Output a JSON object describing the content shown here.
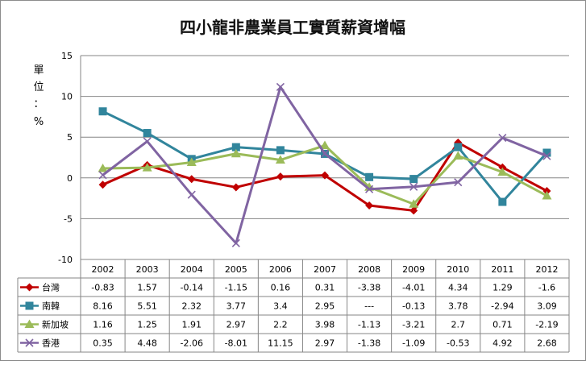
{
  "chart_data": {
    "type": "line",
    "title": "四小龍非農業員工實質薪資增幅",
    "ylabel": [
      "單",
      "位",
      "：",
      "%"
    ],
    "ylim": [
      -10,
      15
    ],
    "yticks": [
      -10,
      -5,
      0,
      5,
      10,
      15
    ],
    "grid": true,
    "legend": "data-table-left",
    "categories": [
      "2002",
      "2003",
      "2004",
      "2005",
      "2006",
      "2007",
      "2008",
      "2009",
      "2010",
      "2011",
      "2012"
    ],
    "series": [
      {
        "name": "台灣",
        "color": "#c00000",
        "marker": "diamond",
        "values": [
          -0.83,
          1.57,
          -0.14,
          -1.15,
          0.16,
          0.31,
          -3.38,
          -4.01,
          4.34,
          1.29,
          -1.6
        ],
        "labels": [
          "-0.83",
          "1.57",
          "-0.14",
          "-1.15",
          "0.16",
          "0.31",
          "-3.38",
          "-4.01",
          "4.34",
          "1.29",
          "-1.6"
        ]
      },
      {
        "name": "南韓",
        "color": "#31859c",
        "marker": "square",
        "values": [
          8.16,
          5.51,
          2.32,
          3.77,
          3.4,
          2.95,
          0.1,
          -0.13,
          3.78,
          -2.94,
          3.09
        ],
        "labels": [
          "8.16",
          "5.51",
          "2.32",
          "3.77",
          "3.4",
          "2.95",
          "---",
          "-0.13",
          "3.78",
          "-2.94",
          "3.09"
        ]
      },
      {
        "name": "新加坡",
        "color": "#9bbb59",
        "marker": "triangle",
        "values": [
          1.16,
          1.25,
          1.91,
          2.97,
          2.2,
          3.98,
          -1.13,
          -3.21,
          2.7,
          0.71,
          -2.19
        ],
        "labels": [
          "1.16",
          "1.25",
          "1.91",
          "2.97",
          "2.2",
          "3.98",
          "-1.13",
          "-3.21",
          "2.7",
          "0.71",
          "-2.19"
        ]
      },
      {
        "name": "香港",
        "color": "#8064a2",
        "marker": "x",
        "values": [
          0.35,
          4.48,
          -2.06,
          -8.01,
          11.15,
          2.97,
          -1.38,
          -1.09,
          -0.53,
          4.92,
          2.68
        ],
        "labels": [
          "0.35",
          "4.48",
          "-2.06",
          "-8.01",
          "11.15",
          "2.97",
          "-1.38",
          "-1.09",
          "-0.53",
          "4.92",
          "2.68"
        ]
      }
    ]
  }
}
